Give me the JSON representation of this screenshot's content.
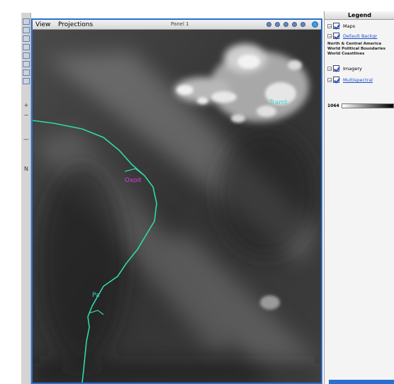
{
  "left_toolbar": {
    "glyphs": [
      "+",
      "−",
      "—",
      "N"
    ]
  },
  "map": {
    "menu": {
      "view": "View",
      "projections": "Projections"
    },
    "panel_title": "Panel 1",
    "labels": [
      {
        "text": "Tramt",
        "color": "#3fd0c8"
      },
      {
        "text": "Oxoit",
        "color": "#e23bd8"
      },
      {
        "text": "Pa",
        "color": "#3fd0c8"
      }
    ],
    "colors": {
      "border": "#2a6fd0",
      "coastline": "#2fd9a8"
    }
  },
  "legend": {
    "title": "Legend",
    "items": [
      {
        "label": "Maps",
        "link": false,
        "expand": "−"
      },
      {
        "label": "Default Backgr",
        "link": true,
        "expand": "−"
      },
      {
        "label": "Imagery",
        "link": false,
        "expand": "−"
      },
      {
        "label": "Multispectral",
        "link": true,
        "expand": "−"
      }
    ],
    "sublabels": [
      "North & Central America",
      "World Political Boundaries",
      "World Coastlines"
    ],
    "colorbar_label": "1064"
  }
}
